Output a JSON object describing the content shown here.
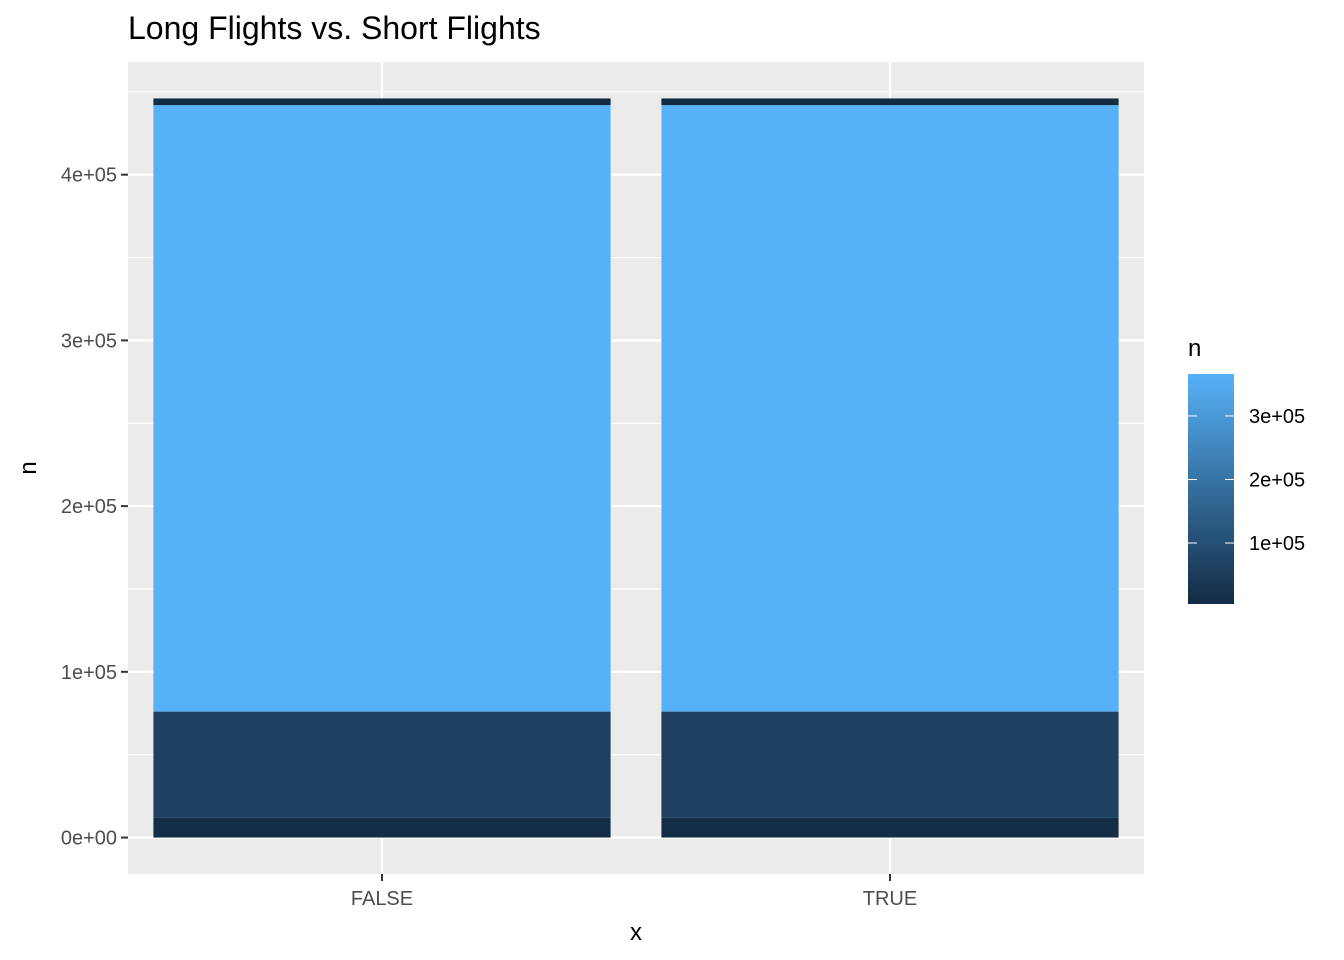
{
  "chart_data": {
    "type": "bar",
    "stacked": true,
    "title": "Long Flights vs. Short Flights",
    "xlabel": "x",
    "ylabel": "n",
    "categories": [
      "FALSE",
      "TRUE"
    ],
    "stacks": [
      {
        "category": "FALSE",
        "segments": [
          {
            "value": 12000
          },
          {
            "value": 64000
          },
          {
            "value": 366000
          },
          {
            "value": 4000
          }
        ]
      },
      {
        "category": "TRUE",
        "segments": [
          {
            "value": 12000
          },
          {
            "value": 64000
          },
          {
            "value": 366000
          },
          {
            "value": 4000
          }
        ]
      }
    ],
    "ylim": [
      -22000,
      468000
    ],
    "y_ticks": [
      {
        "value": 0,
        "label": "0e+00"
      },
      {
        "value": 100000,
        "label": "1e+05"
      },
      {
        "value": 200000,
        "label": "2e+05"
      },
      {
        "value": 300000,
        "label": "3e+05"
      },
      {
        "value": 400000,
        "label": "4e+05"
      }
    ],
    "grid": true,
    "legend": {
      "title": "n",
      "placement": "right",
      "type": "colorbar",
      "range": [
        4000,
        366000
      ],
      "ticks": [
        {
          "value": 100000,
          "label": "1e+05"
        },
        {
          "value": 200000,
          "label": "2e+05"
        },
        {
          "value": 300000,
          "label": "3e+05"
        }
      ],
      "color_low": "#132b43",
      "color_high": "#56b1f7"
    },
    "panel_background": "#ebebeb",
    "grid_color": "#ffffff"
  }
}
